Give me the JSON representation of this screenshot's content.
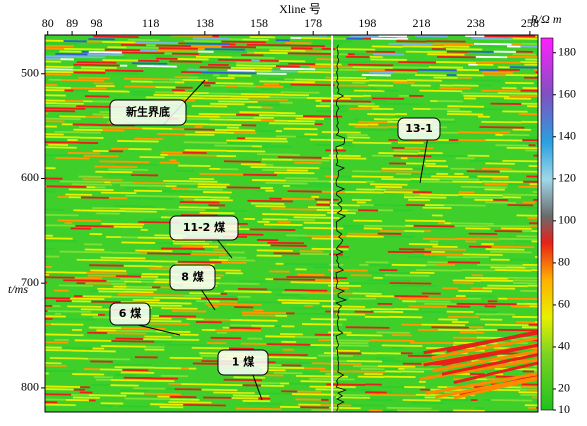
{
  "chart_data": {
    "type": "heatmap",
    "x_label": "Xline 号",
    "y_label": "t/ms",
    "xlim": [
      79,
      261
    ],
    "xticks": [
      80,
      89,
      98,
      118,
      138,
      158,
      178,
      198,
      218,
      238,
      258
    ],
    "ylim": [
      463,
      823
    ],
    "yticks": [
      500,
      600,
      700,
      800
    ],
    "colorbar": {
      "label": "R/Ω m",
      "lim": [
        10,
        187
      ],
      "ticks": [
        10,
        20,
        40,
        60,
        80,
        100,
        120,
        140,
        160,
        180
      ]
    },
    "annotations": [
      {
        "text": "新生界底"
      },
      {
        "text": "13-1"
      },
      {
        "text": "11-2 煤"
      },
      {
        "text": "8 煤"
      },
      {
        "text": "6 煤"
      },
      {
        "text": "1 煤"
      }
    ]
  }
}
